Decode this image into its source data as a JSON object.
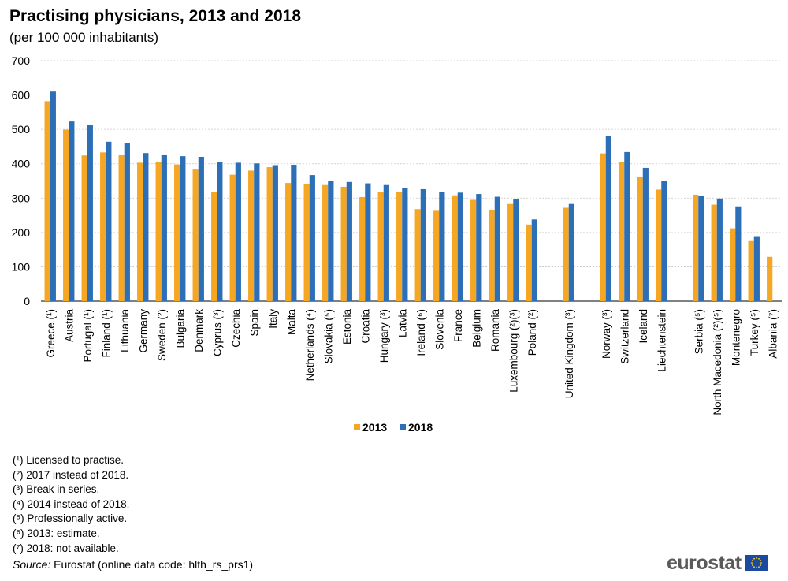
{
  "header": {
    "title": "Practising physicians, 2013 and 2018",
    "subtitle": "(per 100 000 inhabitants)"
  },
  "colors": {
    "series_2013": "#F5A623",
    "series_2018": "#2D6FB7",
    "grid": "#c8c8c8"
  },
  "chart_data": {
    "type": "bar",
    "title": "Practising physicians, 2013 and 2018",
    "subtitle": "(per 100 000 inhabitants)",
    "xlabel": "",
    "ylabel": "",
    "ylim": [
      0,
      700
    ],
    "yticks": [
      "0",
      "100",
      "200",
      "300",
      "400",
      "500",
      "600",
      "700"
    ],
    "grid": true,
    "legend": "bottom-center",
    "categories": [
      "Greece (¹)",
      "Austria",
      "Portugal (¹)",
      "Finland (¹)",
      "Lithuania",
      "Germany",
      "Sweden (²)",
      "Bulgaria",
      "Denmark",
      "Cyprus (³)",
      "Czechia",
      "Spain",
      "Italy",
      "Malta",
      "Netherlands (⁴)",
      "Slovakia (⁵)",
      "Estonia",
      "Croatia",
      "Hungary (³)",
      "Latvia",
      "Ireland (⁶)",
      "Slovenia",
      "France",
      "Belgium",
      "Romania",
      "Luxembourg (²)(³)",
      "Poland (²)",
      "",
      "United Kingdom (³)",
      "",
      "Norway (³)",
      "Switzerland",
      "Iceland",
      "Liechtenstein",
      "",
      "Serbia (⁵)",
      "North Macedonia (²)(⁵)",
      "Montenegro",
      "Turkey (⁵)",
      "Albania (⁷)"
    ],
    "series": [
      {
        "name": "2013",
        "values": [
          582,
          499,
          424,
          433,
          426,
          403,
          404,
          398,
          383,
          319,
          368,
          380,
          390,
          344,
          342,
          338,
          333,
          303,
          319,
          319,
          268,
          263,
          308,
          295,
          266,
          283,
          223,
          null,
          272,
          null,
          430,
          404,
          361,
          325,
          null,
          310,
          281,
          212,
          175,
          129
        ]
      },
      {
        "name": "2018",
        "values": [
          610,
          523,
          513,
          464,
          459,
          431,
          427,
          422,
          420,
          405,
          403,
          401,
          396,
          397,
          367,
          351,
          347,
          343,
          338,
          329,
          326,
          317,
          316,
          312,
          304,
          296,
          238,
          null,
          283,
          null,
          480,
          434,
          388,
          351,
          null,
          307,
          299,
          276,
          187,
          null
        ]
      }
    ]
  },
  "footnotes": [
    "(¹) Licensed to practise.",
    "(²) 2017 instead of 2018.",
    "(³) Break in series.",
    "(⁴) 2014 instead of 2018.",
    "(⁵) Professionally active.",
    "(⁶) 2013: estimate.",
    "(⁷) 2018: not available."
  ],
  "source": {
    "label": "Source:",
    "text": "Eurostat (online data code: hlth_rs_prs1)"
  },
  "logo": {
    "text": "eurostat"
  }
}
